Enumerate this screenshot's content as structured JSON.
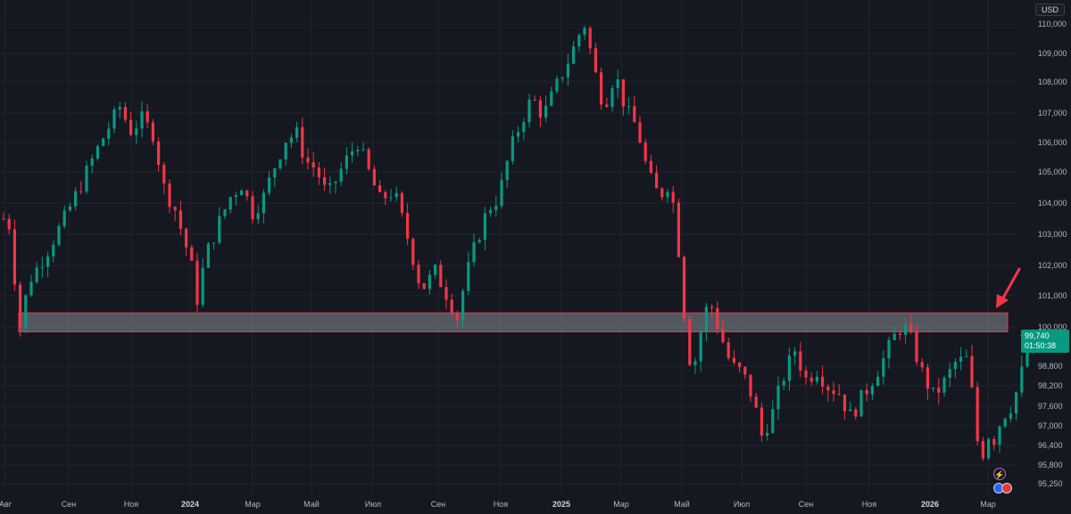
{
  "chart_data": {
    "type": "candlestick",
    "currency": "USD",
    "colors": {
      "up": "#089981",
      "down": "#f23645",
      "zone_border": "#f23645",
      "zone_fill": "#8a8d96",
      "arrow": "#f23645",
      "background": "#151821",
      "axis_text": "#b2b5be"
    },
    "y_ticks": [
      "110,000",
      "109,000",
      "108,000",
      "107,000",
      "106,000",
      "105,000",
      "104,000",
      "103,000",
      "102,000",
      "101,000",
      "100,000",
      "98,800",
      "98,200",
      "97,600",
      "97,000",
      "96,400",
      "95,800",
      "95,250"
    ],
    "x_ticks": [
      "Авг",
      "Сен",
      "Ноя",
      "2024",
      "Мар",
      "Май",
      "Июл",
      "Сен",
      "Ноя",
      "2025",
      "Мар",
      "Май",
      "Июл",
      "Сен",
      "Ноя",
      "2026",
      "Мар"
    ],
    "bold_x_ticks": [
      "2024",
      "2025",
      "2026"
    ],
    "last_price": "99,740",
    "countdown": "01:50:38",
    "zone": {
      "from": 99.85,
      "to": 100.45,
      "x_start": "Авг",
      "x_end": "Мар"
    },
    "close_path": [
      [
        0,
        103.5
      ],
      [
        1,
        103.3
      ],
      [
        2,
        101.6
      ],
      [
        2.8,
        99.8
      ],
      [
        3.5,
        100.6
      ],
      [
        5,
        101.6
      ],
      [
        8,
        102.5
      ],
      [
        11,
        103.5
      ],
      [
        14,
        104.6
      ],
      [
        17,
        105.8
      ],
      [
        19.5,
        106.7
      ],
      [
        21,
        107.2
      ],
      [
        23,
        106.4
      ],
      [
        25,
        106.8
      ],
      [
        27,
        106.3
      ],
      [
        29,
        104.5
      ],
      [
        31,
        103.8
      ],
      [
        33,
        102.6
      ],
      [
        34.5,
        101.6
      ],
      [
        35,
        100.9
      ],
      [
        36.5,
        102.3
      ],
      [
        39,
        103.4
      ],
      [
        41,
        104.2
      ],
      [
        43,
        104.6
      ],
      [
        45,
        103.7
      ],
      [
        47,
        104.2
      ],
      [
        49,
        105.2
      ],
      [
        51,
        106.1
      ],
      [
        53,
        106.3
      ],
      [
        54.5,
        105.4
      ],
      [
        56.5,
        105.1
      ],
      [
        58.5,
        104.2
      ],
      [
        60.5,
        104.9
      ],
      [
        62.5,
        105.6
      ],
      [
        64,
        106.0
      ],
      [
        66,
        105.0
      ],
      [
        68,
        104.1
      ],
      [
        70.5,
        104.4
      ],
      [
        72.5,
        103.2
      ],
      [
        73.5,
        102.6
      ],
      [
        75.5,
        101.2
      ],
      [
        78,
        101.8
      ],
      [
        80.5,
        100.9
      ],
      [
        82,
        100.3
      ],
      [
        83.5,
        101.6
      ],
      [
        85.5,
        102.8
      ],
      [
        87.5,
        103.8
      ],
      [
        89.5,
        104.2
      ],
      [
        91.5,
        105.7
      ],
      [
        93.5,
        106.7
      ],
      [
        95.5,
        107.5
      ],
      [
        97.5,
        106.9
      ],
      [
        99.5,
        107.7
      ],
      [
        101.5,
        108.5
      ],
      [
        103.5,
        109.4
      ],
      [
        104.5,
        109.9
      ],
      [
        105.2,
        110.0
      ],
      [
        106.5,
        108.6
      ],
      [
        108.5,
        107.2
      ],
      [
        110.5,
        108.3
      ],
      [
        112.5,
        107.1
      ],
      [
        114.5,
        106.5
      ],
      [
        116.5,
        104.9
      ],
      [
        118.5,
        104.2
      ],
      [
        120,
        104.6
      ],
      [
        121.5,
        103.7
      ],
      [
        122.5,
        101.3
      ],
      [
        123.5,
        99.6
      ],
      [
        124.5,
        98.5
      ],
      [
        125.5,
        99.5
      ],
      [
        127.5,
        100.9
      ],
      [
        129.5,
        99.8
      ],
      [
        131.5,
        98.8
      ],
      [
        133.5,
        98.6
      ],
      [
        135.5,
        97.8
      ],
      [
        137,
        96.7
      ],
      [
        139,
        97.4
      ],
      [
        141,
        98.5
      ],
      [
        143,
        99.3
      ],
      [
        145,
        98.4
      ],
      [
        147,
        98.7
      ],
      [
        149,
        98.2
      ],
      [
        151,
        98.0
      ],
      [
        153,
        97.3
      ],
      [
        155,
        97.8
      ],
      [
        157,
        98.4
      ],
      [
        159,
        99.0
      ],
      [
        161,
        99.7
      ],
      [
        162.5,
        100.1
      ],
      [
        164,
        99.6
      ],
      [
        166,
        98.6
      ],
      [
        168,
        97.9
      ],
      [
        170,
        98.3
      ],
      [
        172,
        98.9
      ],
      [
        174,
        99.0
      ],
      [
        175.5,
        97.5
      ],
      [
        176.5,
        95.6
      ],
      [
        177.5,
        96.8
      ],
      [
        179,
        96.6
      ],
      [
        180.5,
        97.3
      ],
      [
        182,
        97.6
      ],
      [
        183.5,
        98.2
      ],
      [
        184.5,
        99.0
      ],
      [
        185.5,
        99.5
      ],
      [
        186,
        99.74
      ]
    ]
  }
}
